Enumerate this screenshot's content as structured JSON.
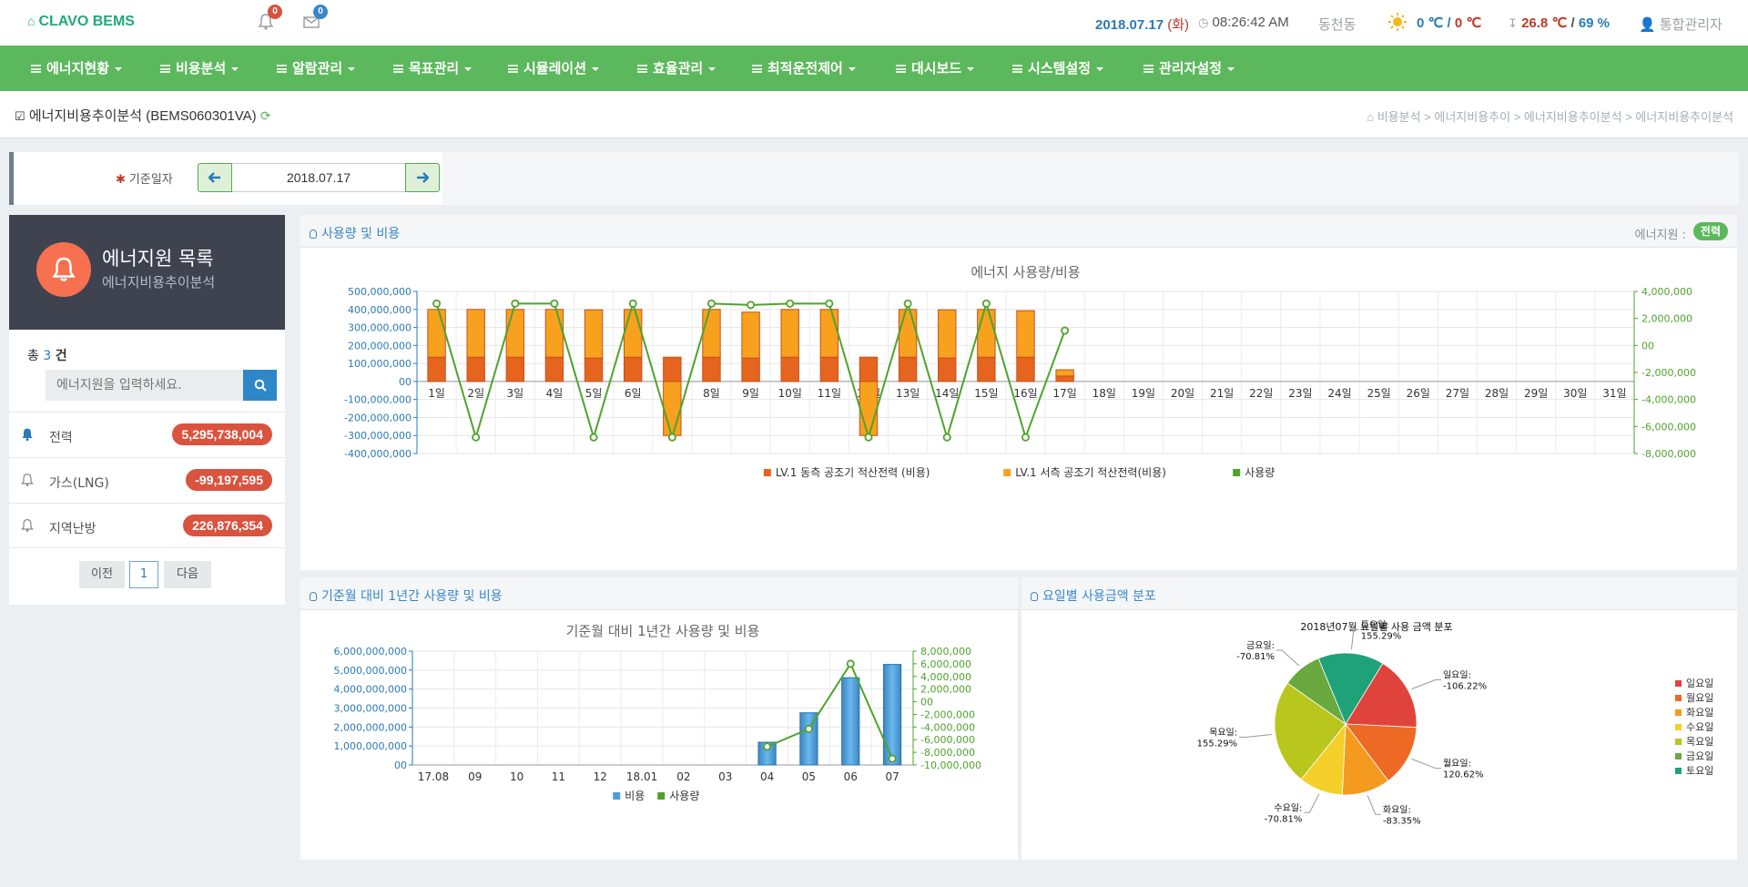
{
  "app": {
    "brand": "CLAVO BEMS"
  },
  "header": {
    "notif_count": "0",
    "mail_count": "0",
    "date": "2018.07.17",
    "weekday": "(화)",
    "time": "08:26:42 AM",
    "location": "동천동",
    "outdoor_temp": "0 ℃",
    "outdoor_sep": "/",
    "outdoor_temp2": "0 ℃",
    "indoor_temp": "26.8 ℃",
    "indoor_sep": "/",
    "indoor_hum": "69 %",
    "user": "통합관리자"
  },
  "nav": [
    "에너지현황",
    "비용분석",
    "알람관리",
    "목표관리",
    "시뮬레이션",
    "효율관리",
    "최적운전제어",
    "대시보드",
    "시스템설정",
    "관리자설정"
  ],
  "page": {
    "title": "에너지비용추이분석 (BEMS060301VA)",
    "breadcrumb": "비용분석 > 에너지비용추이 > 에너지비용추이분석 > 에너지비용추이분석"
  },
  "filter": {
    "label": "기준일자",
    "date": "2018.07.17"
  },
  "sidebar": {
    "title": "에너지원 목록",
    "subtitle": "에너지비용추이분석",
    "total_prefix": "총",
    "total_count": "3",
    "total_suffix": "건",
    "search_placeholder": "에너지원을 입력하세요.",
    "items": [
      {
        "name": "전력",
        "value": "5,295,738,004"
      },
      {
        "name": "가스(LNG)",
        "value": "-99,197,595"
      },
      {
        "name": "지역난방",
        "value": "226,876,354"
      }
    ],
    "pager": {
      "prev": "이전",
      "page": "1",
      "next": "다음"
    }
  },
  "panels": {
    "usage_cost": "사용량 및 비용",
    "energy_label": "에너지원 :",
    "energy_value": "전력",
    "yearly": "기준월 대비 1년간 사용량 및 비용",
    "weekday": "요일별 사용금액 분포"
  },
  "colors": {
    "green": "#5cb85c",
    "orange_dark": "#e5651e",
    "orange_light": "#f7a11f",
    "blue": "#4a9fd8",
    "line_green": "#4fa32c"
  },
  "chart_data": [
    {
      "type": "bar",
      "title": "에너지 사용량/비용",
      "categories": [
        "1일",
        "2일",
        "3일",
        "4일",
        "5일",
        "6일",
        "7일",
        "8일",
        "9일",
        "10일",
        "11일",
        "12일",
        "13일",
        "14일",
        "15일",
        "16일",
        "17일",
        "18일",
        "19일",
        "20일",
        "21일",
        "22일",
        "23일",
        "24일",
        "25일",
        "26일",
        "27일",
        "28일",
        "29일",
        "30일",
        "31일"
      ],
      "y_ticks": [
        "500,000,000",
        "400,000,000",
        "300,000,000",
        "200,000,000",
        "100,000,000",
        "00",
        "-100,000,000",
        "-200,000,000",
        "-300,000,000",
        "-400,000,000"
      ],
      "y2_ticks": [
        "4,000,000",
        "2,000,000",
        "00",
        "-2,000,000",
        "-4,000,000",
        "-6,000,000",
        "-8,000,000"
      ],
      "ylim": [
        -400000000,
        500000000
      ],
      "y2lim": [
        -8000000,
        4000000
      ],
      "series": [
        {
          "name": "LV.1 동측 공조기 적산전력 (비용)",
          "type": "bar",
          "color": "#e5651e",
          "values": [
            135000000,
            135000000,
            135000000,
            135000000,
            130000000,
            135000000,
            135000000,
            135000000,
            130000000,
            135000000,
            135000000,
            135000000,
            135000000,
            130000000,
            135000000,
            135000000,
            30000000,
            null,
            null,
            null,
            null,
            null,
            null,
            null,
            null,
            null,
            null,
            null,
            null,
            null,
            null
          ]
        },
        {
          "name": "LV.1 서측 공조기 적산전력(비용)",
          "type": "bar",
          "color": "#f7a11f",
          "values": [
            265000000,
            265000000,
            265000000,
            265000000,
            268000000,
            265000000,
            -300000000,
            265000000,
            255000000,
            265000000,
            265000000,
            -300000000,
            265000000,
            268000000,
            265000000,
            258000000,
            35000000,
            null,
            null,
            null,
            null,
            null,
            null,
            null,
            null,
            null,
            null,
            null,
            null,
            null,
            null
          ]
        },
        {
          "name": "사용량",
          "type": "line",
          "color": "#4fa32c",
          "values": [
            3100000,
            -6800000,
            3100000,
            3100000,
            -6800000,
            3100000,
            -6800000,
            3100000,
            3000000,
            3100000,
            3100000,
            -6800000,
            3100000,
            -6800000,
            3100000,
            -6800000,
            1100000,
            null,
            null,
            null,
            null,
            null,
            null,
            null,
            null,
            null,
            null,
            null,
            null,
            null,
            null
          ]
        }
      ]
    },
    {
      "type": "bar",
      "title": "기준월 대비 1년간 사용량 및 비용",
      "categories": [
        "17.08",
        "09",
        "10",
        "11",
        "12",
        "18.01",
        "02",
        "03",
        "04",
        "05",
        "06",
        "07"
      ],
      "y_ticks": [
        "6,000,000,000",
        "5,000,000,000",
        "4,000,000,000",
        "3,000,000,000",
        "2,000,000,000",
        "1,000,000,000",
        "00"
      ],
      "y2_ticks": [
        "8,000,000",
        "6,000,000",
        "4,000,000",
        "2,000,000",
        "00",
        "-2,000,000",
        "-4,000,000",
        "-6,000,000",
        "-8,000,000",
        "-10,000,000"
      ],
      "ylim": [
        0,
        6000000000
      ],
      "y2lim": [
        -10000000,
        8000000
      ],
      "series": [
        {
          "name": "비용",
          "type": "bar",
          "color": "#4a9fd8",
          "values": [
            null,
            null,
            null,
            null,
            null,
            null,
            null,
            null,
            1200000000,
            2750000000,
            4600000000,
            5300000000
          ]
        },
        {
          "name": "사용량",
          "type": "line",
          "color": "#4fa32c",
          "values": [
            null,
            null,
            null,
            null,
            null,
            null,
            null,
            null,
            -7100000,
            -4300000,
            6000000,
            -9000000
          ]
        }
      ]
    },
    {
      "type": "pie",
      "title": "2018년07월 요일별 사용 금액 분포",
      "series": [
        {
          "name": "일요일",
          "value": 17,
          "label": "일요일:",
          "pct": "-106.22%",
          "color": "#e0433c"
        },
        {
          "name": "월요일",
          "value": 14,
          "label": "월요일:",
          "pct": "120.62%",
          "color": "#ee6a24"
        },
        {
          "name": "화요일",
          "value": 11,
          "label": "화요일:",
          "pct": "-83.35%",
          "color": "#f49b1f"
        },
        {
          "name": "수요일",
          "value": 10,
          "label": "수요일:",
          "pct": "-70.81%",
          "color": "#f5cf2a"
        },
        {
          "name": "목요일",
          "value": 24,
          "label": "목요일:",
          "pct": "155.29%",
          "color": "#b9c61d"
        },
        {
          "name": "금요일",
          "value": 9,
          "label": "금요일:",
          "pct": "-70.81%",
          "color": "#6aa840"
        },
        {
          "name": "토요일",
          "value": 15,
          "label": "토요일:",
          "pct": "155.29%",
          "color": "#1fa27a"
        }
      ]
    }
  ]
}
